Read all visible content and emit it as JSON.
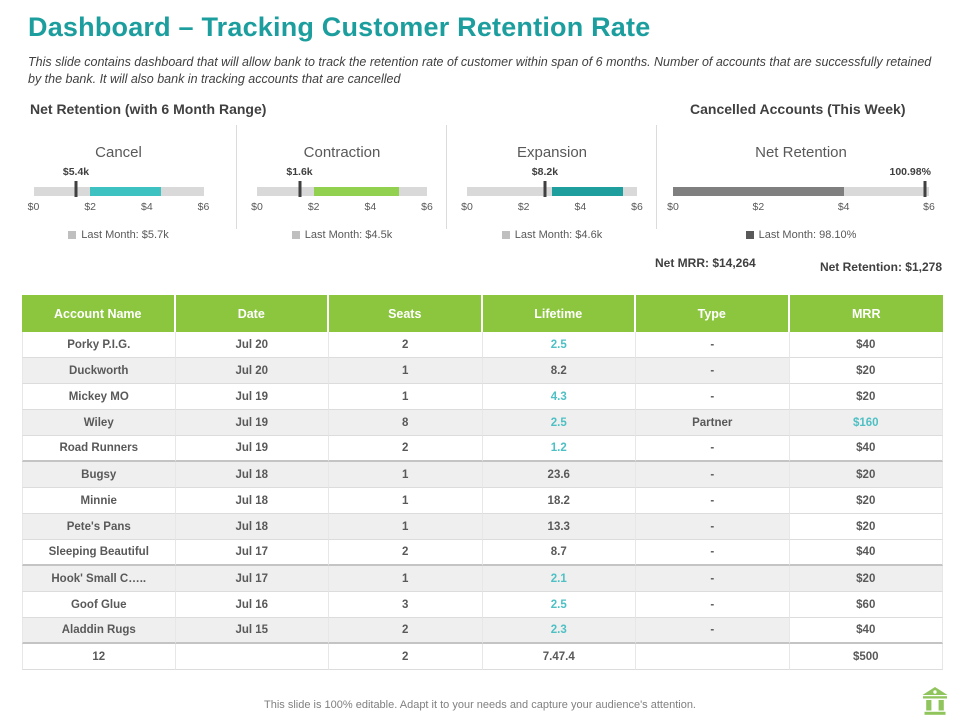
{
  "slide": {
    "title": "Dashboard – Tracking Customer Retention Rate",
    "subtitle": "This slide contains dashboard that will allow bank to track the retention rate of customer within span of 6 months. Number of accounts that are successfully retained by the bank. It will also bank in tracking accounts that are cancelled",
    "left_section_title": "Net Retention (with 6 Month Range)",
    "right_section_title": "Cancelled Accounts  (This Week)",
    "footer_note": "This slide is 100% editable.  Adapt it to your needs and capture your audience's attention.",
    "footer_icon": "bank-icon"
  },
  "colors": {
    "title_teal": "#1D9E9E",
    "table_header_green": "#8CC63F",
    "accent_teal": "#4EC0C4",
    "track_gray": "#D9D9D9",
    "text_dark": "#404040",
    "text_gray": "#595959"
  },
  "chart_data": [
    {
      "type": "bullet",
      "title": "Cancel",
      "value_label": "$5.4k",
      "marker_value": 1.5,
      "bar_start": 2,
      "bar_end": 4.5,
      "bar_color": "#3EC1C1",
      "axis_range": [
        0,
        6
      ],
      "axis_ticks": [
        "$0",
        "$2",
        "$4",
        "$6"
      ],
      "legend_label": "Last Month: $5.7k",
      "legend_color": "#BFBFBF",
      "wide": false
    },
    {
      "type": "bullet",
      "title": "Contraction",
      "value_label": "$1.6k",
      "marker_value": 1.5,
      "bar_start": 2,
      "bar_end": 5,
      "bar_color": "#92D050",
      "axis_range": [
        0,
        6
      ],
      "axis_ticks": [
        "$0",
        "$2",
        "$4",
        "$6"
      ],
      "legend_label": "Last Month: $4.5k",
      "legend_color": "#BFBFBF",
      "wide": false
    },
    {
      "type": "bullet",
      "title": "Expansion",
      "value_label": "$8.2k",
      "marker_value": 2.75,
      "bar_start": 3,
      "bar_end": 5.5,
      "bar_color": "#1F9E9E",
      "axis_range": [
        0,
        6
      ],
      "axis_ticks": [
        "$0",
        "$2",
        "$4",
        "$6"
      ],
      "legend_label": "Last Month: $4.6k",
      "legend_color": "#BFBFBF",
      "wide": false
    },
    {
      "type": "bullet",
      "title": "Net Retention",
      "value_label": "100.98%",
      "marker_value": 5.9,
      "bar_start": 0,
      "bar_end": 4,
      "bar_color": "#7F7F7F",
      "axis_range": [
        0,
        6
      ],
      "axis_ticks": [
        "$0",
        "$2",
        "$4",
        "$6"
      ],
      "legend_label": "Last Month: 98.10%",
      "legend_color": "#595959",
      "wide": true
    }
  ],
  "summary": {
    "net_mrr": "Net MRR: $14,264",
    "net_retention": "Net Retention: $1,278"
  },
  "table": {
    "headers": [
      "Account Name",
      "Date",
      "Seats",
      "Lifetime",
      "Type",
      "MRR"
    ],
    "rows": [
      {
        "account": "Porky P.I.G.",
        "date": "Jul 20",
        "seats": "2",
        "lifetime": "2.5",
        "type": "-",
        "mrr": "$40",
        "shaded": false,
        "mrr_shaded": false,
        "lifetime_accent": true,
        "mrr_accent": false,
        "group_end": false,
        "total": false
      },
      {
        "account": "Duckworth",
        "date": "Jul 20",
        "seats": "1",
        "lifetime": "8.2",
        "type": "-",
        "mrr": "$20",
        "shaded": true,
        "mrr_shaded": false,
        "lifetime_accent": false,
        "mrr_accent": false,
        "group_end": false,
        "total": false
      },
      {
        "account": "Mickey MO",
        "date": "Jul 19",
        "seats": "1",
        "lifetime": "4.3",
        "type": "-",
        "mrr": "$20",
        "shaded": false,
        "mrr_shaded": false,
        "lifetime_accent": true,
        "mrr_accent": false,
        "group_end": false,
        "total": false
      },
      {
        "account": "Wiley",
        "date": "Jul 19",
        "seats": "8",
        "lifetime": "2.5",
        "type": "Partner",
        "mrr": "$160",
        "shaded": true,
        "mrr_shaded": true,
        "lifetime_accent": true,
        "mrr_accent": true,
        "group_end": false,
        "total": false
      },
      {
        "account": "Road Runners",
        "date": "Jul 19",
        "seats": "2",
        "lifetime": "1.2",
        "type": "-",
        "mrr": "$40",
        "shaded": false,
        "mrr_shaded": false,
        "lifetime_accent": true,
        "mrr_accent": false,
        "group_end": true,
        "total": false
      },
      {
        "account": "Bugsy",
        "date": "Jul 18",
        "seats": "1",
        "lifetime": "23.6",
        "type": "-",
        "mrr": "$20",
        "shaded": true,
        "mrr_shaded": true,
        "lifetime_accent": false,
        "mrr_accent": false,
        "group_end": false,
        "total": false
      },
      {
        "account": "Minnie",
        "date": "Jul 18",
        "seats": "1",
        "lifetime": "18.2",
        "type": "-",
        "mrr": "$20",
        "shaded": false,
        "mrr_shaded": false,
        "lifetime_accent": false,
        "mrr_accent": false,
        "group_end": false,
        "total": false
      },
      {
        "account": "Pete's Pans",
        "date": "Jul 18",
        "seats": "1",
        "lifetime": "13.3",
        "type": "-",
        "mrr": "$20",
        "shaded": true,
        "mrr_shaded": false,
        "lifetime_accent": false,
        "mrr_accent": false,
        "group_end": false,
        "total": false
      },
      {
        "account": "Sleeping Beautiful",
        "date": "Jul 17",
        "seats": "2",
        "lifetime": "8.7",
        "type": "-",
        "mrr": "$40",
        "shaded": false,
        "mrr_shaded": false,
        "lifetime_accent": false,
        "mrr_accent": false,
        "group_end": true,
        "total": false
      },
      {
        "account": "Hook' Small C…..",
        "date": "Jul 17",
        "seats": "1",
        "lifetime": "2.1",
        "type": "-",
        "mrr": "$20",
        "shaded": true,
        "mrr_shaded": true,
        "lifetime_accent": true,
        "mrr_accent": false,
        "group_end": false,
        "total": false
      },
      {
        "account": "Goof Glue",
        "date": "Jul 16",
        "seats": "3",
        "lifetime": "2.5",
        "type": "-",
        "mrr": "$60",
        "shaded": false,
        "mrr_shaded": false,
        "lifetime_accent": true,
        "mrr_accent": false,
        "group_end": false,
        "total": false
      },
      {
        "account": "Aladdin Rugs",
        "date": "Jul 15",
        "seats": "2",
        "lifetime": "2.3",
        "type": "-",
        "mrr": "$40",
        "shaded": true,
        "mrr_shaded": false,
        "lifetime_accent": true,
        "mrr_accent": false,
        "group_end": true,
        "total": false
      },
      {
        "account": "12",
        "date": "",
        "seats": "2",
        "lifetime": "7.47.4",
        "type": "",
        "mrr": "$500",
        "shaded": false,
        "mrr_shaded": false,
        "lifetime_accent": false,
        "mrr_accent": false,
        "group_end": false,
        "total": true
      }
    ]
  }
}
